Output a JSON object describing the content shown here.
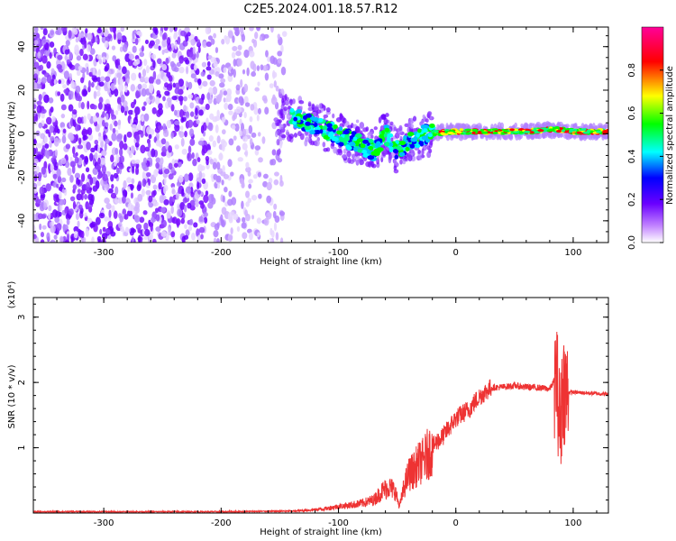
{
  "title": "C2E5.2024.001.18.57.R12",
  "chart_data": [
    {
      "type": "heatmap",
      "xlabel": "Height of straight line (km)",
      "ylabel": "Frequency (Hz)",
      "xlim": [
        -360,
        130
      ],
      "ylim": [
        -50,
        49
      ],
      "xticks": [
        -300,
        -200,
        -100,
        0,
        100
      ],
      "yticks": [
        -40,
        -20,
        0,
        20,
        40
      ],
      "grid": false,
      "ridge": [
        {
          "x": -150,
          "y": 8
        },
        {
          "x": -130,
          "y": 6
        },
        {
          "x": -110,
          "y": 2
        },
        {
          "x": -95,
          "y": -2
        },
        {
          "x": -80,
          "y": -5
        },
        {
          "x": -70,
          "y": -8
        },
        {
          "x": -60,
          "y": 0
        },
        {
          "x": -50,
          "y": -8
        },
        {
          "x": -40,
          "y": -4
        },
        {
          "x": -25,
          "y": 0
        },
        {
          "x": 0,
          "y": 1
        },
        {
          "x": 30,
          "y": 1
        },
        {
          "x": 60,
          "y": 1
        },
        {
          "x": 85,
          "y": 2
        },
        {
          "x": 100,
          "y": 1
        },
        {
          "x": 130,
          "y": 1
        }
      ],
      "colorbar": {
        "label": "Normalized spectral amplitude",
        "range": [
          0,
          1
        ],
        "ticks": [
          0.0,
          0.2,
          0.4,
          0.6,
          0.8
        ],
        "tick_labels": [
          "0.0",
          "0.2",
          "0.4",
          "0.6",
          "0.8"
        ],
        "colors": [
          "#ffffff",
          "#6a00ff",
          "#0000ff",
          "#00ffff",
          "#00ff00",
          "#ffff00",
          "#ff0000",
          "#ff00aa"
        ]
      }
    },
    {
      "type": "line",
      "xlabel": "Height of straight line (km)",
      "ylabel": "SNR (10 * v/v)",
      "y_multiplier": "(x10⁴)",
      "xlim": [
        -360,
        130
      ],
      "ylim": [
        0,
        3.3
      ],
      "xticks": [
        -300,
        -200,
        -100,
        0,
        100
      ],
      "yticks": [
        1,
        2,
        3
      ],
      "grid": false,
      "color": "#ee3333",
      "series": [
        {
          "x": [
            -360,
            -300,
            -200,
            -140,
            -120,
            -110,
            -100,
            -90,
            -80,
            -70,
            -62,
            -57,
            -52,
            -48,
            -44,
            -40,
            -36,
            -32,
            -28,
            -24,
            -20,
            -16,
            -12,
            -8,
            -4,
            0,
            4,
            8,
            12,
            16,
            20,
            25,
            30,
            40,
            50,
            60,
            70,
            80,
            86,
            89,
            91,
            94,
            100,
            110,
            120,
            130
          ],
          "y": [
            0.02,
            0.02,
            0.02,
            0.03,
            0.05,
            0.07,
            0.1,
            0.12,
            0.15,
            0.2,
            0.35,
            0.4,
            0.35,
            0.1,
            0.4,
            0.6,
            0.65,
            0.75,
            0.8,
            0.9,
            1.0,
            1.1,
            1.15,
            1.25,
            1.35,
            1.45,
            1.5,
            1.55,
            1.6,
            1.7,
            1.78,
            1.85,
            1.92,
            1.93,
            1.95,
            1.93,
            1.92,
            1.9,
            2.1,
            1.2,
            2.0,
            1.85,
            1.85,
            1.84,
            1.83,
            1.82
          ]
        }
      ]
    }
  ]
}
